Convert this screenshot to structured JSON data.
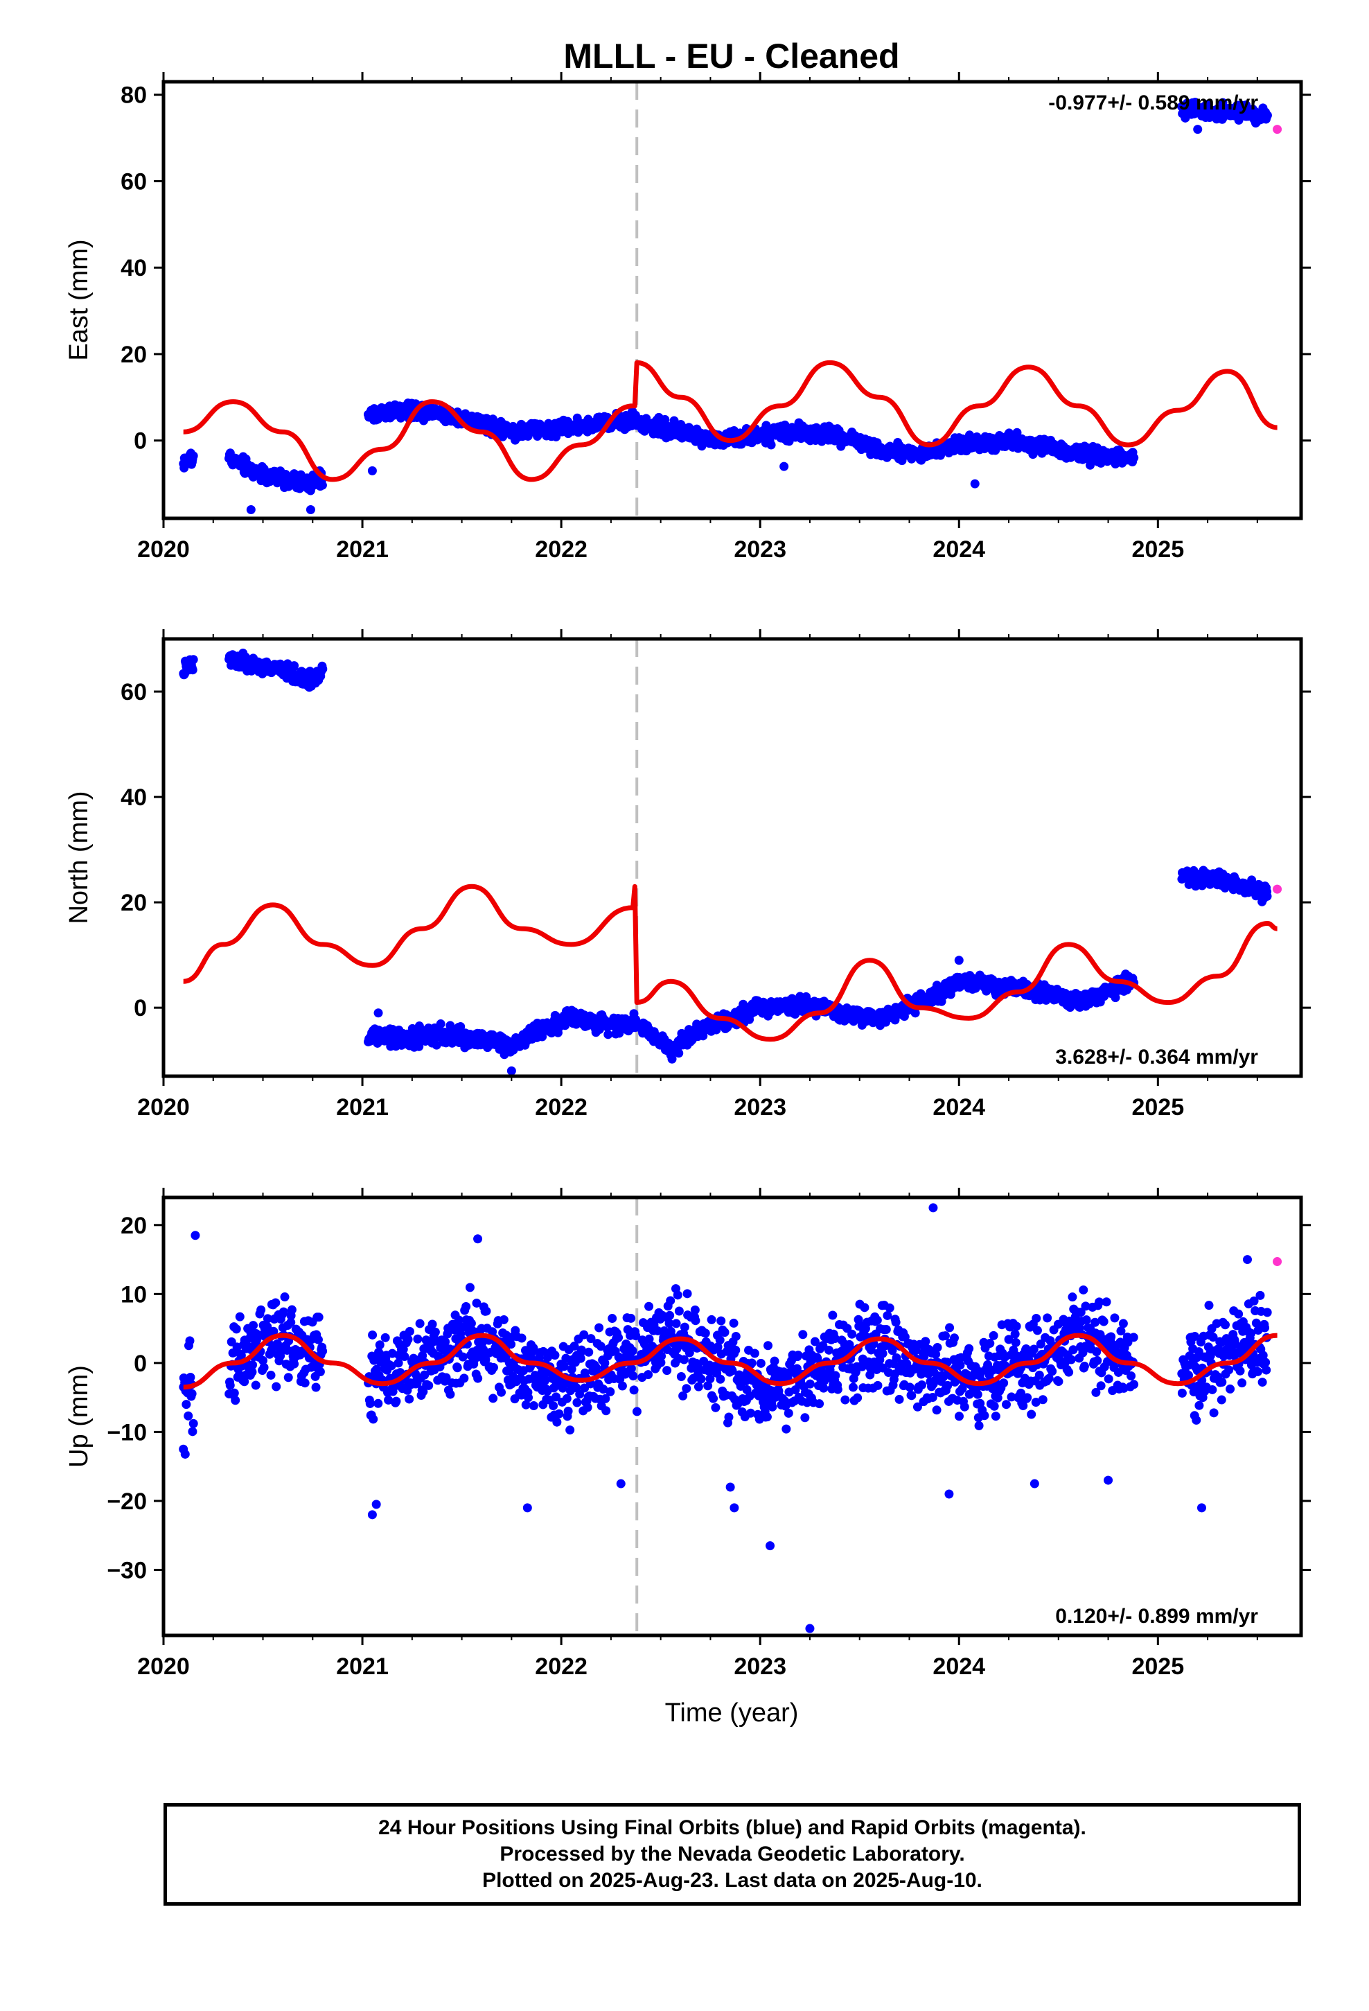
{
  "title": "MLLL  - EU - Cleaned",
  "xlabel": "Time (year)",
  "colors": {
    "final": "#0000ff",
    "rapid": "#ff33cc",
    "model": "#ee0000",
    "break": "#c0c0c0"
  },
  "footer": [
    "24 Hour Positions Using Final Orbits (blue) and Rapid Orbits (magenta).",
    "Processed by the Nevada Geodetic Laboratory.",
    "Plotted on 2025-Aug-23. Last data on 2025-Aug-10."
  ],
  "chart_data": [
    {
      "type": "scatter",
      "ylabel": "East (mm)",
      "rate_label": "-0.977+/- 0.589 mm/yr",
      "rate_position": "top-right",
      "xlim": [
        2020.0,
        2025.72
      ],
      "ylim": [
        -18,
        83
      ],
      "xticks": [
        "2020",
        "2021",
        "2022",
        "2023",
        "2024",
        "2025"
      ],
      "yticks": [
        "0",
        "20",
        "40",
        "60",
        "80"
      ],
      "break_epoch": 2022.38,
      "final_orbit_segments": [
        {
          "x": [
            2020.1,
            2020.15
          ],
          "y": [
            -5,
            -4
          ]
        },
        {
          "x": [
            2020.33,
            2020.45,
            2020.6,
            2020.72,
            2020.8
          ],
          "y": [
            -4,
            -7,
            -9,
            -10,
            -9
          ]
        },
        {
          "x": [
            2021.03,
            2021.2,
            2021.35,
            2021.6,
            2021.8,
            2022.0,
            2022.2,
            2022.38
          ],
          "y": [
            6,
            7,
            7,
            4,
            2,
            3,
            4,
            5
          ]
        },
        {
          "x": [
            2022.4,
            2022.6,
            2022.8,
            2023.0,
            2023.2,
            2023.4,
            2023.6,
            2023.8,
            2024.0,
            2024.2,
            2024.4,
            2024.6,
            2024.8,
            2024.88
          ],
          "y": [
            4,
            2,
            0,
            1,
            2,
            1,
            -2,
            -3,
            -1,
            0,
            -1,
            -3,
            -4,
            -4
          ]
        },
        {
          "x": [
            2025.12,
            2025.3,
            2025.45,
            2025.55
          ],
          "y": [
            77,
            76,
            76,
            75
          ]
        }
      ],
      "scatter_amplitude": 1.8,
      "outliers": [
        {
          "x": 2020.44,
          "y": -16
        },
        {
          "x": 2020.74,
          "y": -16
        },
        {
          "x": 2021.05,
          "y": -7
        },
        {
          "x": 2023.12,
          "y": -6
        },
        {
          "x": 2024.08,
          "y": -10
        },
        {
          "x": 2025.2,
          "y": 72
        }
      ],
      "rapid_orbit_points": [
        {
          "x": 2025.6,
          "y": 72
        }
      ],
      "model": {
        "x": [
          2020.1,
          2020.35,
          2020.6,
          2020.85,
          2021.1,
          2021.35,
          2021.6,
          2021.85,
          2022.1,
          2022.36,
          2022.37,
          2022.38,
          2022.6,
          2022.85,
          2023.1,
          2023.35,
          2023.6,
          2023.85,
          2024.1,
          2024.35,
          2024.6,
          2024.85,
          2025.1,
          2025.35,
          2025.6
        ],
        "y": [
          2,
          9,
          2,
          -9,
          -2,
          9,
          2,
          -9,
          -1,
          8,
          8,
          18,
          10,
          0,
          8,
          18,
          10,
          -1,
          8,
          17,
          8,
          -1,
          7,
          16,
          3
        ]
      }
    },
    {
      "type": "scatter",
      "ylabel": "North (mm)",
      "rate_label": "3.628+/- 0.364 mm/yr",
      "rate_position": "bottom-right",
      "xlim": [
        2020.0,
        2025.72
      ],
      "ylim": [
        -13,
        70
      ],
      "xticks": [
        "2020",
        "2021",
        "2022",
        "2023",
        "2024",
        "2025"
      ],
      "yticks": [
        "0",
        "20",
        "40",
        "60"
      ],
      "break_epoch": 2022.38,
      "final_orbit_segments": [
        {
          "x": [
            2020.1,
            2020.15
          ],
          "y": [
            64,
            65
          ]
        },
        {
          "x": [
            2020.33,
            2020.45,
            2020.6,
            2020.72,
            2020.8
          ],
          "y": [
            66,
            65,
            64,
            62,
            64
          ]
        },
        {
          "x": [
            2021.03,
            2021.2,
            2021.4,
            2021.6,
            2021.75,
            2021.9,
            2022.05,
            2022.2,
            2022.38
          ],
          "y": [
            -5,
            -6,
            -5,
            -6,
            -7,
            -4,
            -2,
            -3,
            -3
          ]
        },
        {
          "x": [
            2022.4,
            2022.55,
            2022.7,
            2022.85,
            2023.0,
            2023.2,
            2023.4,
            2023.6,
            2023.8,
            2024.0,
            2024.2,
            2024.4,
            2024.6,
            2024.8,
            2024.88
          ],
          "y": [
            -3,
            -8,
            -4,
            -2,
            0,
            1,
            -1,
            -2,
            1,
            5,
            4,
            3,
            1,
            4,
            5
          ]
        },
        {
          "x": [
            2025.12,
            2025.3,
            2025.45,
            2025.55
          ],
          "y": [
            25,
            24,
            23,
            22
          ]
        }
      ],
      "scatter_amplitude": 1.5,
      "outliers": [
        {
          "x": 2021.08,
          "y": -1
        },
        {
          "x": 2021.75,
          "y": -12
        },
        {
          "x": 2024.0,
          "y": 9
        }
      ],
      "rapid_orbit_points": [
        {
          "x": 2025.6,
          "y": 22.5
        }
      ],
      "model": {
        "x": [
          2020.1,
          2020.3,
          2020.55,
          2020.8,
          2021.05,
          2021.3,
          2021.55,
          2021.8,
          2022.05,
          2022.36,
          2022.37,
          2022.38,
          2022.55,
          2022.8,
          2023.05,
          2023.3,
          2023.55,
          2023.8,
          2024.05,
          2024.3,
          2024.55,
          2024.8,
          2025.05,
          2025.3,
          2025.55,
          2025.6
        ],
        "y": [
          5,
          12,
          19.5,
          12,
          8,
          15,
          23,
          15,
          12,
          19,
          23,
          1,
          5,
          -2,
          -6,
          -1,
          9,
          0,
          -2,
          3,
          12,
          5,
          1,
          6,
          16,
          15
        ]
      }
    },
    {
      "type": "scatter",
      "ylabel": "Up (mm)",
      "rate_label": "0.120+/- 0.899 mm/yr",
      "rate_position": "bottom-right",
      "xlim": [
        2020.0,
        2025.72
      ],
      "ylim": [
        -39.5,
        24
      ],
      "xticks": [
        "2020",
        "2021",
        "2022",
        "2023",
        "2024",
        "2025"
      ],
      "yticks": [
        "20",
        "10",
        "0",
        "-10",
        "-20",
        "-30"
      ],
      "break_epoch": 2022.38,
      "final_orbit_segments": [
        {
          "x": [
            2020.1,
            2020.15
          ],
          "y": [
            -6,
            -4
          ]
        },
        {
          "x": [
            2020.33,
            2020.58,
            2020.8
          ],
          "y": [
            0,
            4,
            1
          ]
        },
        {
          "x": [
            2021.03,
            2021.3,
            2021.58,
            2021.85,
            2022.1,
            2022.38
          ],
          "y": [
            -3,
            0,
            4,
            -2,
            -2,
            1
          ]
        },
        {
          "x": [
            2022.4,
            2022.6,
            2022.85,
            2023.1,
            2023.35,
            2023.6,
            2023.85,
            2024.1,
            2024.35,
            2024.6,
            2024.88
          ],
          "y": [
            2,
            4,
            -2,
            -4,
            0,
            3,
            -1,
            -3,
            0,
            4,
            -1
          ]
        },
        {
          "x": [
            2025.12,
            2025.35,
            2025.55
          ],
          "y": [
            -2,
            1,
            3
          ]
        }
      ],
      "scatter_amplitude": 6,
      "outliers": [
        {
          "x": 2020.1,
          "y": -12.5
        },
        {
          "x": 2020.16,
          "y": 18.5
        },
        {
          "x": 2021.05,
          "y": -22
        },
        {
          "x": 2021.07,
          "y": -20.5
        },
        {
          "x": 2021.58,
          "y": 18
        },
        {
          "x": 2021.83,
          "y": -21
        },
        {
          "x": 2022.3,
          "y": -17.5
        },
        {
          "x": 2022.85,
          "y": -18
        },
        {
          "x": 2022.87,
          "y": -21
        },
        {
          "x": 2023.05,
          "y": -26.5
        },
        {
          "x": 2023.25,
          "y": -38.5
        },
        {
          "x": 2023.87,
          "y": 22.5
        },
        {
          "x": 2023.95,
          "y": -19
        },
        {
          "x": 2024.38,
          "y": -17.5
        },
        {
          "x": 2024.75,
          "y": -17
        },
        {
          "x": 2025.22,
          "y": -21
        },
        {
          "x": 2025.45,
          "y": 15
        }
      ],
      "rapid_orbit_points": [
        {
          "x": 2025.6,
          "y": 14.7
        }
      ],
      "model": {
        "x": [
          2020.1,
          2020.35,
          2020.6,
          2020.85,
          2021.1,
          2021.35,
          2021.6,
          2021.85,
          2022.1,
          2022.35,
          2022.6,
          2022.85,
          2023.1,
          2023.35,
          2023.6,
          2023.85,
          2024.1,
          2024.35,
          2024.6,
          2024.85,
          2025.1,
          2025.35,
          2025.6
        ],
        "y": [
          -3.5,
          0,
          4,
          0,
          -3,
          0,
          4,
          0,
          -2.5,
          0,
          3.5,
          0,
          -3,
          0,
          3.5,
          0,
          -3,
          0,
          4,
          0,
          -3,
          0,
          4
        ]
      }
    }
  ]
}
